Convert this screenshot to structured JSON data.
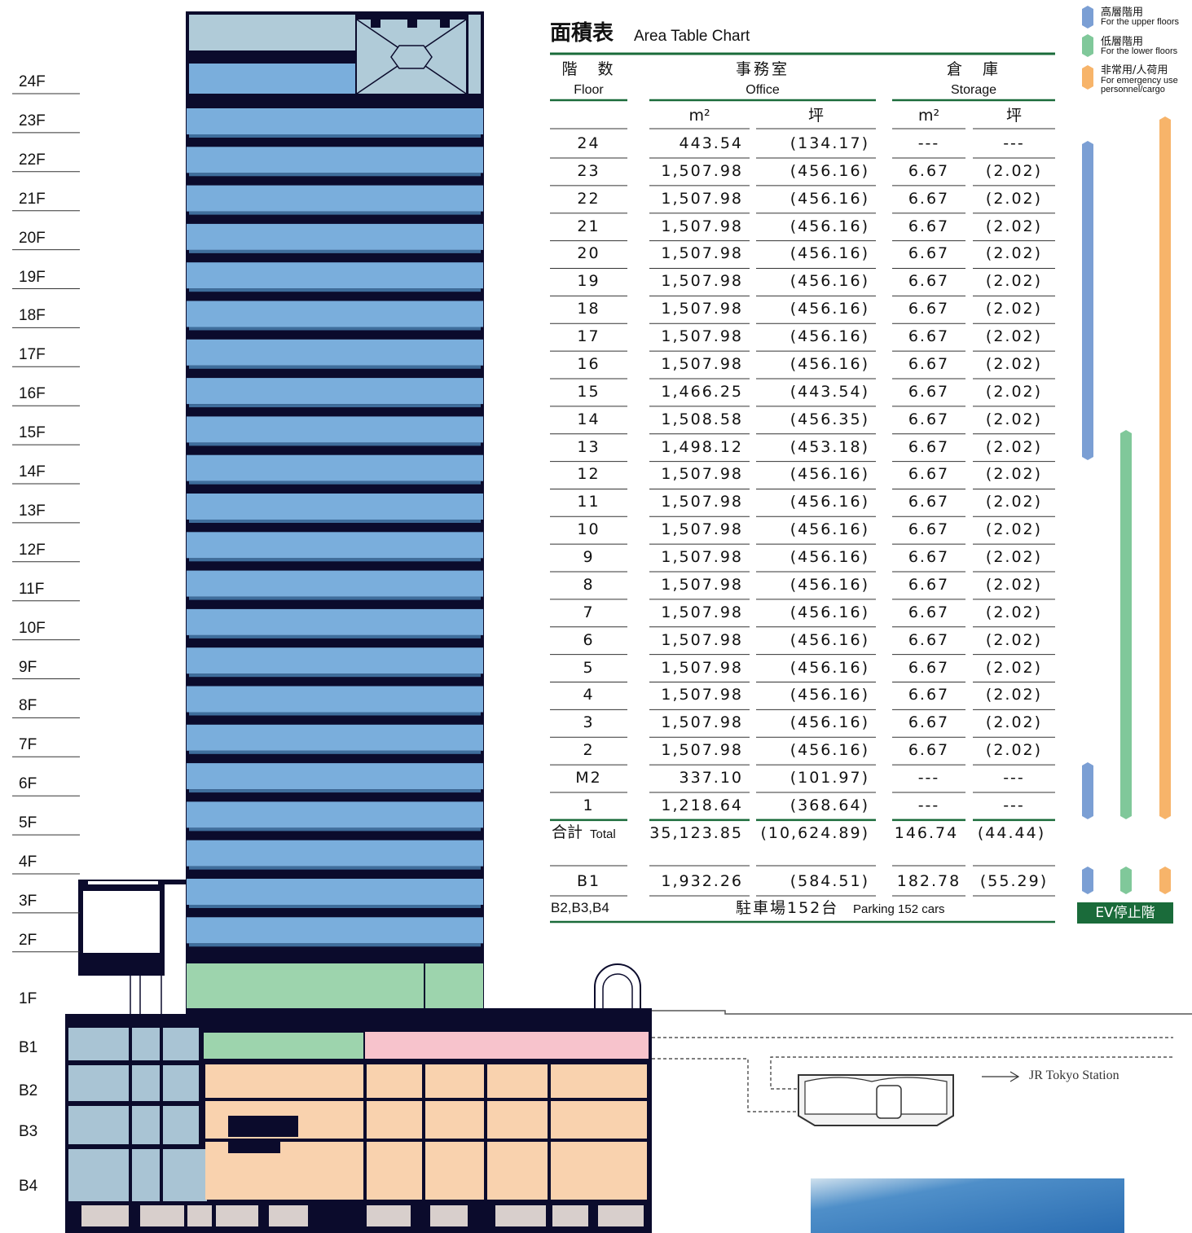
{
  "floor_labels": [
    "24F",
    "23F",
    "22F",
    "21F",
    "20F",
    "19F",
    "18F",
    "17F",
    "16F",
    "15F",
    "14F",
    "13F",
    "12F",
    "11F",
    "10F",
    "9F",
    "8F",
    "7F",
    "6F",
    "5F",
    "4F",
    "3F",
    "2F",
    "1F",
    "B1",
    "B2",
    "B3",
    "B4"
  ],
  "table": {
    "title": "面積表",
    "subtitle": "Area Table Chart",
    "headers": [
      {
        "label": "階　数",
        "label_en": "Floor"
      },
      {
        "label": "事務室",
        "label_en": "Office"
      },
      {
        "label": "倉　庫",
        "label_en": "Storage"
      }
    ],
    "units": [
      "m²",
      "坪",
      "m²",
      "坪"
    ],
    "rows": [
      [
        "24",
        "443.54",
        "(134.17)",
        "---",
        "---"
      ],
      [
        "23",
        "1,507.98",
        "(456.16)",
        "6.67",
        "(2.02)"
      ],
      [
        "22",
        "1,507.98",
        "(456.16)",
        "6.67",
        "(2.02)"
      ],
      [
        "21",
        "1,507.98",
        "(456.16)",
        "6.67",
        "(2.02)"
      ],
      [
        "20",
        "1,507.98",
        "(456.16)",
        "6.67",
        "(2.02)"
      ],
      [
        "19",
        "1,507.98",
        "(456.16)",
        "6.67",
        "(2.02)"
      ],
      [
        "18",
        "1,507.98",
        "(456.16)",
        "6.67",
        "(2.02)"
      ],
      [
        "17",
        "1,507.98",
        "(456.16)",
        "6.67",
        "(2.02)"
      ],
      [
        "16",
        "1,507.98",
        "(456.16)",
        "6.67",
        "(2.02)"
      ],
      [
        "15",
        "1,466.25",
        "(443.54)",
        "6.67",
        "(2.02)"
      ],
      [
        "14",
        "1,508.58",
        "(456.35)",
        "6.67",
        "(2.02)"
      ],
      [
        "13",
        "1,498.12",
        "(453.18)",
        "6.67",
        "(2.02)"
      ],
      [
        "12",
        "1,507.98",
        "(456.16)",
        "6.67",
        "(2.02)"
      ],
      [
        "11",
        "1,507.98",
        "(456.16)",
        "6.67",
        "(2.02)"
      ],
      [
        "10",
        "1,507.98",
        "(456.16)",
        "6.67",
        "(2.02)"
      ],
      [
        "9",
        "1,507.98",
        "(456.16)",
        "6.67",
        "(2.02)"
      ],
      [
        "8",
        "1,507.98",
        "(456.16)",
        "6.67",
        "(2.02)"
      ],
      [
        "7",
        "1,507.98",
        "(456.16)",
        "6.67",
        "(2.02)"
      ],
      [
        "6",
        "1,507.98",
        "(456.16)",
        "6.67",
        "(2.02)"
      ],
      [
        "5",
        "1,507.98",
        "(456.16)",
        "6.67",
        "(2.02)"
      ],
      [
        "4",
        "1,507.98",
        "(456.16)",
        "6.67",
        "(2.02)"
      ],
      [
        "3",
        "1,507.98",
        "(456.16)",
        "6.67",
        "(2.02)"
      ],
      [
        "2",
        "1,507.98",
        "(456.16)",
        "6.67",
        "(2.02)"
      ],
      [
        "M2",
        "337.10",
        "(101.97)",
        "---",
        "---"
      ],
      [
        "1",
        "1,218.64",
        "(368.64)",
        "---",
        "---"
      ]
    ],
    "total": {
      "label": "合計",
      "label_en": "Total",
      "values": [
        "35,123.85",
        "(10,624.89)",
        "146.74",
        "(44.44)"
      ]
    },
    "basement": [
      "B1",
      "1,932.26",
      "(584.51)",
      "182.78",
      "(55.29)"
    ],
    "parking": {
      "floor": "B2,B3,B4",
      "label": "駐車場152台",
      "label_en": "Parking 152 cars"
    }
  },
  "legend": [
    {
      "label": "高層階用",
      "label_en": "For the upper floors"
    },
    {
      "label": "低層階用",
      "label_en": "For the lower floors"
    },
    {
      "label": "非常用/人荷用",
      "label_en": "For emergency use personnel/cargo"
    }
  ],
  "ev_label": "EV停止階",
  "station": "JR Tokyo Station"
}
